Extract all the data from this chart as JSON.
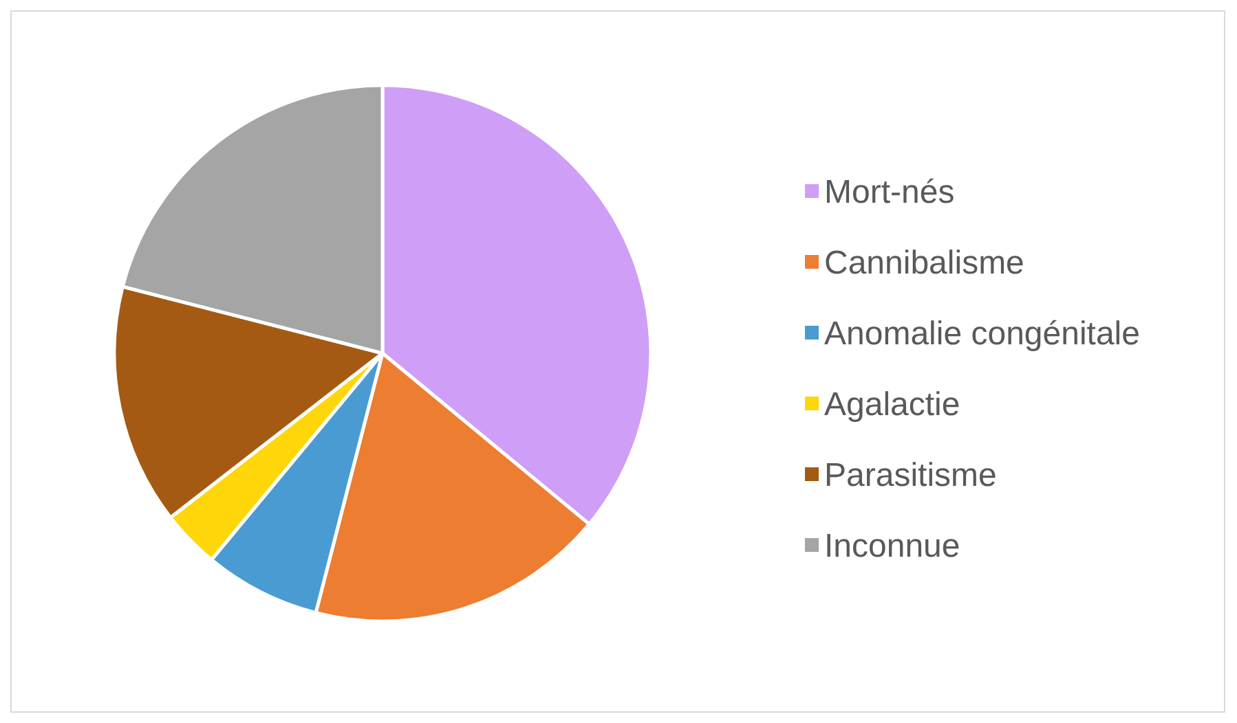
{
  "chart_data": {
    "type": "pie",
    "categories": [
      "Mort-nés",
      "Cannibalisme",
      "Anomalie congénitale",
      "Agalactie",
      "Parasitisme",
      "Inconnue"
    ],
    "values": [
      36,
      18,
      7,
      3.5,
      14.5,
      21
    ],
    "colors": [
      "#cf9ef7",
      "#ed7d31",
      "#4a9bd1",
      "#ffd60a",
      "#a55a14",
      "#a5a5a5"
    ],
    "legend": "right"
  }
}
